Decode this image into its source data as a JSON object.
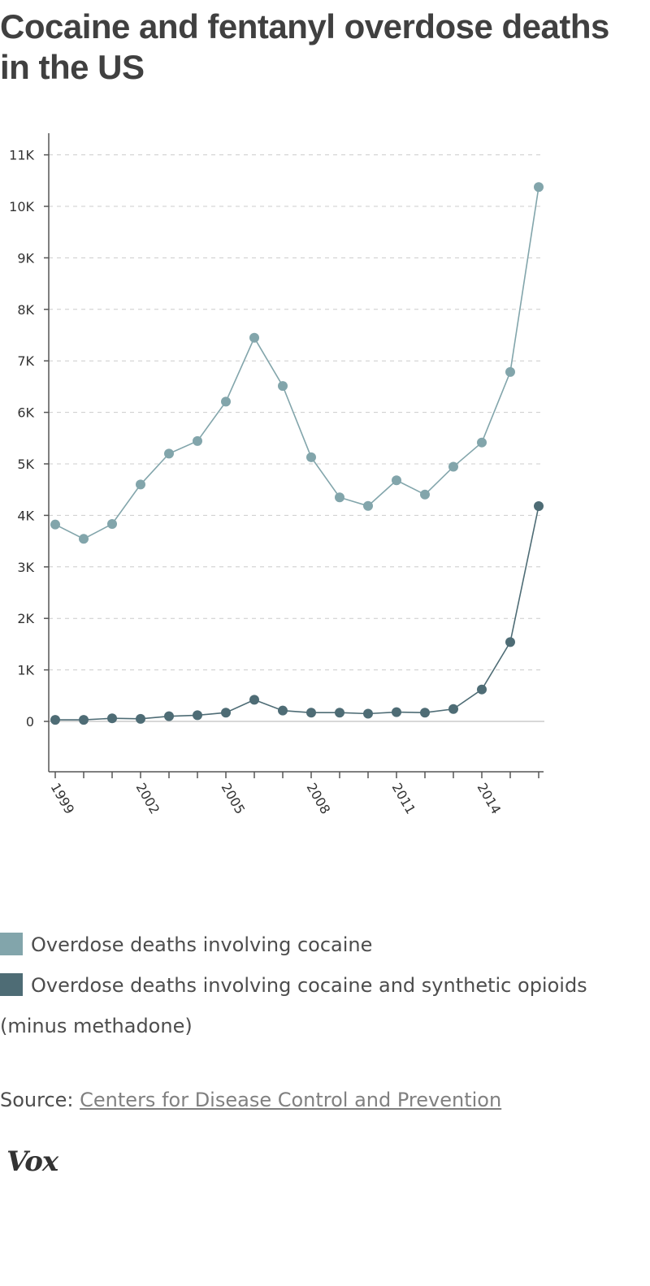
{
  "title": "Cocaine and fentanyl overdose deaths in the US",
  "legend": {
    "items": [
      {
        "label": "Overdose deaths involving cocaine",
        "color": "#82a5ab"
      },
      {
        "label": "Overdose deaths involving cocaine and synthetic opioids (minus methadone)",
        "color": "#4e6c75"
      }
    ]
  },
  "source": {
    "prefix": "Source: ",
    "link_text": "Centers for Disease Control and Prevention"
  },
  "logo": "Vox",
  "chart_data": {
    "type": "line",
    "x": [
      1999,
      2000,
      2001,
      2002,
      2003,
      2004,
      2005,
      2006,
      2007,
      2008,
      2009,
      2010,
      2011,
      2012,
      2013,
      2014,
      2015,
      2016
    ],
    "x_tick_labels": [
      "1999",
      "2002",
      "2005",
      "2008",
      "2011",
      "2014"
    ],
    "x_tick_values": [
      1999,
      2002,
      2005,
      2008,
      2011,
      2014
    ],
    "y_tick_labels": [
      "0",
      "1K",
      "2K",
      "3K",
      "4K",
      "5K",
      "6K",
      "7K",
      "8K",
      "9K",
      "10K",
      "11K"
    ],
    "y_tick_values": [
      0,
      1000,
      2000,
      3000,
      4000,
      5000,
      6000,
      7000,
      8000,
      9000,
      10000,
      11000
    ],
    "ylim": [
      -1000,
      11400
    ],
    "grid": "horizontal dashed",
    "series": [
      {
        "name": "Overdose deaths involving cocaine",
        "color": "#82a5ab",
        "values": [
          3822,
          3544,
          3833,
          4599,
          5199,
          5443,
          6208,
          7448,
          6512,
          5129,
          4350,
          4183,
          4681,
          4404,
          4944,
          5415,
          6784,
          10375
        ]
      },
      {
        "name": "Overdose deaths involving cocaine and synthetic opioids (minus methadone)",
        "color": "#4e6c75",
        "values": [
          30,
          30,
          60,
          50,
          100,
          120,
          170,
          420,
          210,
          170,
          170,
          150,
          180,
          170,
          240,
          620,
          1540,
          4180
        ]
      }
    ]
  }
}
